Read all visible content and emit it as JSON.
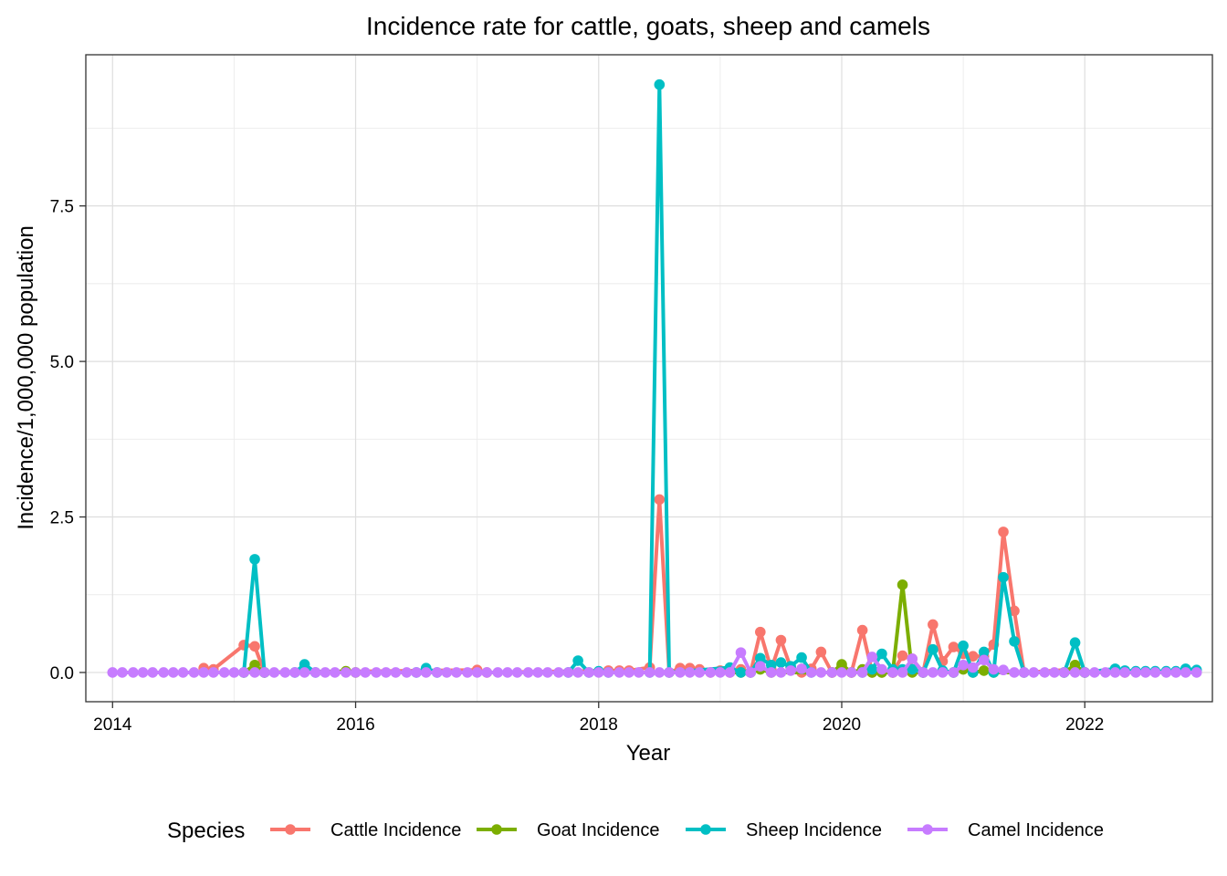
{
  "chart_data": {
    "type": "line",
    "title": "Incidence rate for cattle, goats, sheep and camels",
    "xlabel": "Year",
    "ylabel": "Incidence/1,000,000 population",
    "xlim": [
      2013.78,
      2023.05
    ],
    "ylim": [
      -0.47,
      9.93
    ],
    "x_ticks": [
      2014,
      2016,
      2018,
      2020,
      2022
    ],
    "x_tick_labels": [
      "2014",
      "2016",
      "2018",
      "2020",
      "2022"
    ],
    "y_ticks": [
      0,
      2.5,
      5,
      7.5
    ],
    "y_tick_labels": [
      "0.0",
      "2.5",
      "5.0",
      "7.5"
    ],
    "grid": true,
    "legend": {
      "title": "Species",
      "position": "bottom"
    },
    "series": [
      {
        "name": "Cattle Incidence",
        "color": "#F8766D",
        "points": [
          [
            2014.75,
            0.07
          ],
          [
            2014.83,
            0.05
          ],
          [
            2015.08,
            0.44
          ],
          [
            2015.17,
            0.42
          ],
          [
            2015.25,
            0
          ],
          [
            2017.0,
            0.04
          ],
          [
            2017.08,
            0
          ],
          [
            2018.08,
            0.03
          ],
          [
            2018.17,
            0.03
          ],
          [
            2018.25,
            0.03
          ],
          [
            2018.42,
            0.08
          ],
          [
            2018.5,
            2.78
          ],
          [
            2018.58,
            0
          ],
          [
            2018.67,
            0.07
          ],
          [
            2018.75,
            0.07
          ],
          [
            2018.83,
            0.05
          ],
          [
            2018.92,
            0
          ],
          [
            2019.0,
            0.03
          ],
          [
            2019.08,
            0
          ],
          [
            2019.17,
            0.05
          ],
          [
            2019.25,
            0
          ],
          [
            2019.33,
            0.65
          ],
          [
            2019.42,
            0.05
          ],
          [
            2019.5,
            0.52
          ],
          [
            2019.58,
            0.08
          ],
          [
            2019.67,
            0
          ],
          [
            2019.75,
            0.06
          ],
          [
            2019.83,
            0.33
          ],
          [
            2019.92,
            0
          ],
          [
            2020.0,
            0.1
          ],
          [
            2020.08,
            0
          ],
          [
            2020.17,
            0.68
          ],
          [
            2020.25,
            0
          ],
          [
            2020.33,
            0
          ],
          [
            2020.42,
            0
          ],
          [
            2020.5,
            0.27
          ],
          [
            2020.58,
            0.22
          ],
          [
            2020.67,
            0
          ],
          [
            2020.75,
            0.77
          ],
          [
            2020.83,
            0.18
          ],
          [
            2020.92,
            0.41
          ],
          [
            2021.0,
            0.3
          ],
          [
            2021.08,
            0.26
          ],
          [
            2021.17,
            0.26
          ],
          [
            2021.25,
            0.45
          ],
          [
            2021.33,
            2.26
          ],
          [
            2021.42,
            0.99
          ],
          [
            2021.5,
            0
          ],
          [
            2021.92,
            0.05
          ],
          [
            2022.0,
            0
          ],
          [
            2022.25,
            0.02
          ],
          [
            2022.33,
            0
          ]
        ]
      },
      {
        "name": "Goat Incidence",
        "color": "#7CAE00",
        "points": [
          [
            2015.08,
            0
          ],
          [
            2015.17,
            0.12
          ],
          [
            2015.25,
            0
          ],
          [
            2015.92,
            0.02
          ],
          [
            2016.0,
            0
          ],
          [
            2019.17,
            0
          ],
          [
            2019.33,
            0.05
          ],
          [
            2019.42,
            0
          ],
          [
            2019.92,
            0
          ],
          [
            2020.0,
            0.13
          ],
          [
            2020.08,
            0
          ],
          [
            2020.17,
            0.05
          ],
          [
            2020.25,
            0
          ],
          [
            2020.33,
            0
          ],
          [
            2020.42,
            0
          ],
          [
            2020.5,
            1.41
          ],
          [
            2020.58,
            0
          ],
          [
            2020.67,
            0
          ],
          [
            2020.92,
            0
          ],
          [
            2021.0,
            0.05
          ],
          [
            2021.08,
            0
          ],
          [
            2021.17,
            0.03
          ],
          [
            2021.25,
            0
          ],
          [
            2021.83,
            0
          ],
          [
            2021.92,
            0.12
          ],
          [
            2022.0,
            0
          ]
        ]
      },
      {
        "name": "Sheep Incidence",
        "color": "#00BFC4",
        "points": [
          [
            2015.08,
            0
          ],
          [
            2015.17,
            1.82
          ],
          [
            2015.25,
            0
          ],
          [
            2015.5,
            0
          ],
          [
            2015.58,
            0.13
          ],
          [
            2015.67,
            0
          ],
          [
            2016.5,
            0
          ],
          [
            2016.58,
            0.07
          ],
          [
            2016.67,
            0
          ],
          [
            2017.75,
            0
          ],
          [
            2017.83,
            0.19
          ],
          [
            2017.92,
            0
          ],
          [
            2018.0,
            0.02
          ],
          [
            2018.08,
            0
          ],
          [
            2018.42,
            0
          ],
          [
            2018.5,
            9.45
          ],
          [
            2018.58,
            0
          ],
          [
            2019.08,
            0.08
          ],
          [
            2019.17,
            0
          ],
          [
            2019.25,
            0
          ],
          [
            2019.33,
            0.23
          ],
          [
            2019.42,
            0.12
          ],
          [
            2019.5,
            0.16
          ],
          [
            2019.58,
            0.1
          ],
          [
            2019.67,
            0.24
          ],
          [
            2019.75,
            0
          ],
          [
            2020.17,
            0
          ],
          [
            2020.25,
            0.05
          ],
          [
            2020.33,
            0.3
          ],
          [
            2020.42,
            0.05
          ],
          [
            2020.5,
            0.05
          ],
          [
            2020.58,
            0.05
          ],
          [
            2020.67,
            0
          ],
          [
            2020.75,
            0.37
          ],
          [
            2020.83,
            0.03
          ],
          [
            2020.92,
            0
          ],
          [
            2021.0,
            0.43
          ],
          [
            2021.08,
            0
          ],
          [
            2021.17,
            0.33
          ],
          [
            2021.25,
            0
          ],
          [
            2021.33,
            1.53
          ],
          [
            2021.42,
            0.5
          ],
          [
            2021.5,
            0
          ],
          [
            2021.83,
            0
          ],
          [
            2021.92,
            0.48
          ],
          [
            2022.0,
            0
          ],
          [
            2022.25,
            0.06
          ],
          [
            2022.33,
            0.03
          ],
          [
            2022.42,
            0.02
          ],
          [
            2022.5,
            0.02
          ],
          [
            2022.58,
            0.02
          ],
          [
            2022.67,
            0.02
          ],
          [
            2022.75,
            0.02
          ],
          [
            2022.83,
            0.06
          ],
          [
            2022.92,
            0.04
          ]
        ]
      },
      {
        "name": "Camel Incidence",
        "color": "#C77CFF",
        "points": [
          [
            2014.0,
            0
          ],
          [
            2014.08,
            0
          ],
          [
            2014.17,
            0
          ],
          [
            2014.25,
            0
          ],
          [
            2014.33,
            0
          ],
          [
            2014.42,
            0
          ],
          [
            2014.5,
            0
          ],
          [
            2014.58,
            0
          ],
          [
            2014.67,
            0
          ],
          [
            2014.75,
            0
          ],
          [
            2014.83,
            0
          ],
          [
            2014.92,
            0
          ],
          [
            2015.0,
            0
          ],
          [
            2015.08,
            0
          ],
          [
            2015.17,
            0
          ],
          [
            2015.25,
            0
          ],
          [
            2015.33,
            0
          ],
          [
            2015.42,
            0
          ],
          [
            2015.5,
            0
          ],
          [
            2015.58,
            0
          ],
          [
            2015.67,
            0
          ],
          [
            2015.75,
            0
          ],
          [
            2015.83,
            0
          ],
          [
            2015.92,
            0
          ],
          [
            2016.0,
            0
          ],
          [
            2016.08,
            0
          ],
          [
            2016.17,
            0
          ],
          [
            2016.25,
            0
          ],
          [
            2016.33,
            0
          ],
          [
            2016.42,
            0
          ],
          [
            2016.5,
            0
          ],
          [
            2016.58,
            0
          ],
          [
            2016.67,
            0
          ],
          [
            2016.75,
            0
          ],
          [
            2016.83,
            0
          ],
          [
            2016.92,
            0
          ],
          [
            2017.0,
            0
          ],
          [
            2017.08,
            0
          ],
          [
            2017.17,
            0
          ],
          [
            2017.25,
            0
          ],
          [
            2017.33,
            0
          ],
          [
            2017.42,
            0
          ],
          [
            2017.5,
            0
          ],
          [
            2017.58,
            0
          ],
          [
            2017.67,
            0
          ],
          [
            2017.75,
            0
          ],
          [
            2017.83,
            0
          ],
          [
            2017.92,
            0
          ],
          [
            2018.0,
            0
          ],
          [
            2018.08,
            0
          ],
          [
            2018.17,
            0
          ],
          [
            2018.25,
            0
          ],
          [
            2018.33,
            0
          ],
          [
            2018.42,
            0
          ],
          [
            2018.5,
            0
          ],
          [
            2018.58,
            0
          ],
          [
            2018.67,
            0
          ],
          [
            2018.75,
            0
          ],
          [
            2018.83,
            0
          ],
          [
            2018.92,
            0
          ],
          [
            2019.0,
            0
          ],
          [
            2019.08,
            0
          ],
          [
            2019.17,
            0.32
          ],
          [
            2019.25,
            0
          ],
          [
            2019.33,
            0.1
          ],
          [
            2019.42,
            0
          ],
          [
            2019.5,
            0
          ],
          [
            2019.58,
            0.03
          ],
          [
            2019.67,
            0.06
          ],
          [
            2019.75,
            0
          ],
          [
            2019.83,
            0
          ],
          [
            2019.92,
            0
          ],
          [
            2020.0,
            0
          ],
          [
            2020.08,
            0
          ],
          [
            2020.17,
            0
          ],
          [
            2020.25,
            0.25
          ],
          [
            2020.33,
            0.05
          ],
          [
            2020.42,
            0
          ],
          [
            2020.5,
            0
          ],
          [
            2020.58,
            0.22
          ],
          [
            2020.67,
            0
          ],
          [
            2020.75,
            0
          ],
          [
            2020.83,
            0
          ],
          [
            2020.92,
            0
          ],
          [
            2021.0,
            0.12
          ],
          [
            2021.08,
            0.08
          ],
          [
            2021.17,
            0.2
          ],
          [
            2021.25,
            0.05
          ],
          [
            2021.33,
            0.04
          ],
          [
            2021.42,
            0
          ],
          [
            2021.5,
            0
          ],
          [
            2021.58,
            0
          ],
          [
            2021.67,
            0
          ],
          [
            2021.75,
            0
          ],
          [
            2021.83,
            0
          ],
          [
            2021.92,
            0
          ],
          [
            2022.0,
            0
          ],
          [
            2022.08,
            0
          ],
          [
            2022.17,
            0
          ],
          [
            2022.25,
            0
          ],
          [
            2022.33,
            0
          ],
          [
            2022.42,
            0
          ],
          [
            2022.5,
            0
          ],
          [
            2022.58,
            0
          ],
          [
            2022.67,
            0
          ],
          [
            2022.75,
            0
          ],
          [
            2022.83,
            0
          ],
          [
            2022.92,
            0
          ]
        ]
      }
    ]
  }
}
